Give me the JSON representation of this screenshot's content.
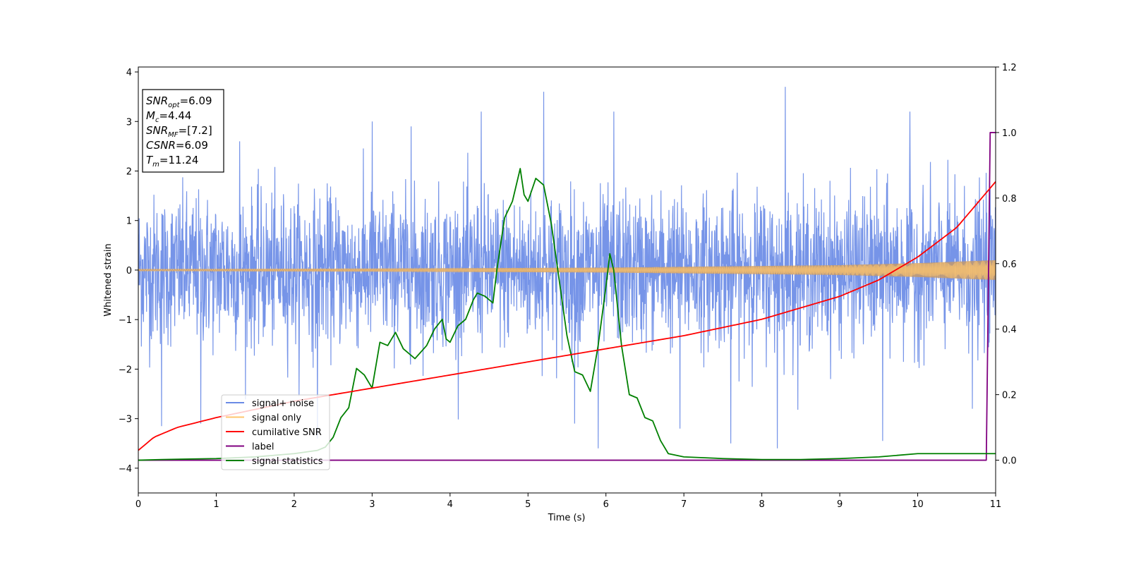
{
  "chart_data": {
    "type": "line",
    "xlabel": "Time (s)",
    "ylabel": "Whitened strain",
    "xlim": [
      0,
      11
    ],
    "ylim": [
      -4.5,
      4.1
    ],
    "y2lim": [
      -0.1,
      1.2
    ],
    "x_ticks": [
      "0",
      "1",
      "2",
      "3",
      "4",
      "5",
      "6",
      "7",
      "8",
      "9",
      "10",
      "11"
    ],
    "y_ticks": [
      "4",
      "3",
      "2",
      "1",
      "0",
      "−1",
      "−2",
      "−3",
      "−4"
    ],
    "y2_ticks": [
      "1.2",
      "1.0",
      "0.8",
      "0.6",
      "0.4",
      "0.2",
      "0.0"
    ],
    "legend_placement": "lower-left",
    "annotation": [
      {
        "main": "SNR",
        "sub": "opt",
        "value": "=6.09"
      },
      {
        "main": "M",
        "sub": "c",
        "value": "=4.44"
      },
      {
        "main": "SNR",
        "sub": "MF",
        "value": "=[7.2]"
      },
      {
        "main": "CSNR",
        "sub": "",
        "value": "=6.09"
      },
      {
        "main": "T",
        "sub": "m",
        "value": "=11.24"
      }
    ],
    "series": [
      {
        "name": "signal+ noise",
        "color": "#6a8be6",
        "axis": "left",
        "description_kind": "noise",
        "noise_std": 0.75,
        "spikes": [
          [
            0.3,
            -3.15
          ],
          [
            0.8,
            -3.1
          ],
          [
            1.3,
            2.6
          ],
          [
            2.3,
            -3.4
          ],
          [
            3.0,
            3.0
          ],
          [
            3.5,
            2.9
          ],
          [
            4.4,
            3.2
          ],
          [
            5.2,
            3.6
          ],
          [
            5.6,
            -3.1
          ],
          [
            5.9,
            -3.6
          ],
          [
            6.1,
            3.2
          ],
          [
            6.95,
            -3.2
          ],
          [
            7.6,
            -3.5
          ],
          [
            8.2,
            -3.6
          ],
          [
            8.3,
            3.7
          ],
          [
            9.55,
            -3.45
          ],
          [
            9.9,
            3.2
          ],
          [
            10.7,
            -2.8
          ]
        ]
      },
      {
        "name": "signal only",
        "color": "#ffc66e",
        "axis": "left",
        "envelope": [
          [
            0,
            0.02
          ],
          [
            3,
            0.03
          ],
          [
            6,
            0.05
          ],
          [
            9,
            0.1
          ],
          [
            10,
            0.14
          ],
          [
            11,
            0.2
          ]
        ]
      },
      {
        "name": "cumilative SNR",
        "color": "#ff0000",
        "axis": "right",
        "x": [
          0,
          0.2,
          0.5,
          1,
          2,
          3,
          4,
          5,
          6,
          7,
          8,
          9,
          9.5,
          10,
          10.5,
          11
        ],
        "y": [
          0.03,
          0.07,
          0.1,
          0.13,
          0.18,
          0.22,
          0.26,
          0.3,
          0.34,
          0.38,
          0.43,
          0.5,
          0.55,
          0.62,
          0.71,
          0.85
        ]
      },
      {
        "name": "label",
        "color": "#800080",
        "axis": "right",
        "x": [
          0,
          10.88,
          10.93,
          11
        ],
        "y": [
          0,
          0,
          1.0,
          1.0
        ]
      },
      {
        "name": "signal statistics",
        "color": "#008000",
        "axis": "right",
        "x": [
          0,
          0.3,
          1.0,
          1.5,
          2.0,
          2.3,
          2.4,
          2.5,
          2.6,
          2.7,
          2.8,
          2.9,
          3.0,
          3.1,
          3.2,
          3.3,
          3.4,
          3.55,
          3.7,
          3.8,
          3.9,
          3.95,
          4.0,
          4.1,
          4.2,
          4.3,
          4.35,
          4.45,
          4.55,
          4.6,
          4.7,
          4.8,
          4.9,
          4.95,
          5.0,
          5.1,
          5.2,
          5.3,
          5.4,
          5.5,
          5.6,
          5.7,
          5.8,
          5.9,
          6.0,
          6.05,
          6.1,
          6.2,
          6.3,
          6.4,
          6.5,
          6.6,
          6.7,
          6.8,
          7.0,
          7.5,
          8.0,
          8.5,
          9.0,
          9.5,
          10.0,
          10.5,
          10.9,
          11.0
        ],
        "y": [
          0,
          0.002,
          0.005,
          0.01,
          0.02,
          0.03,
          0.04,
          0.07,
          0.13,
          0.16,
          0.28,
          0.26,
          0.22,
          0.36,
          0.35,
          0.39,
          0.34,
          0.31,
          0.35,
          0.4,
          0.43,
          0.37,
          0.36,
          0.41,
          0.43,
          0.49,
          0.51,
          0.5,
          0.48,
          0.58,
          0.74,
          0.79,
          0.89,
          0.81,
          0.79,
          0.86,
          0.84,
          0.72,
          0.55,
          0.38,
          0.27,
          0.26,
          0.21,
          0.35,
          0.53,
          0.63,
          0.58,
          0.35,
          0.2,
          0.19,
          0.13,
          0.12,
          0.06,
          0.02,
          0.01,
          0.005,
          0.002,
          0.002,
          0.005,
          0.01,
          0.02,
          0.02,
          0.02,
          0.02
        ]
      }
    ]
  }
}
